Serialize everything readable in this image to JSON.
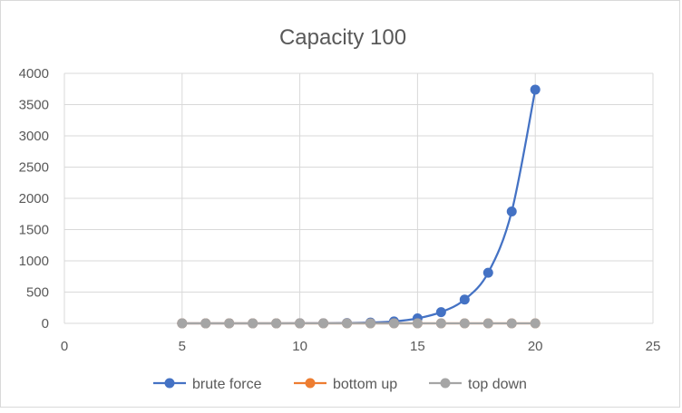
{
  "chart_data": {
    "type": "scatter",
    "title": "Capacity 100",
    "xlabel": "",
    "ylabel": "",
    "xlim": [
      0,
      25
    ],
    "ylim": [
      0,
      4000
    ],
    "xticks": [
      0,
      5,
      10,
      15,
      20,
      25
    ],
    "yticks": [
      0,
      500,
      1000,
      1500,
      2000,
      2500,
      3000,
      3500,
      4000
    ],
    "grid": true,
    "smooth_lines": true,
    "legend_position": "bottom",
    "series": [
      {
        "name": "brute force",
        "color": "#4472c4",
        "x": [
          5,
          6,
          7,
          8,
          9,
          10,
          11,
          12,
          13,
          14,
          15,
          16,
          17,
          18,
          19,
          20
        ],
        "y": [
          0,
          0,
          0,
          0,
          0,
          1,
          2,
          5,
          12,
          30,
          80,
          180,
          380,
          810,
          1790,
          3740
        ]
      },
      {
        "name": "bottom up",
        "color": "#ed7d31",
        "x": [
          5,
          6,
          7,
          8,
          9,
          10,
          11,
          12,
          13,
          14,
          15,
          16,
          17,
          18,
          19,
          20
        ],
        "y": [
          0,
          0,
          0,
          0,
          0,
          0,
          0,
          0,
          0,
          0,
          0,
          0,
          0,
          0,
          0,
          0
        ]
      },
      {
        "name": "top down",
        "color": "#a5a5a5",
        "x": [
          5,
          6,
          7,
          8,
          9,
          10,
          11,
          12,
          13,
          14,
          15,
          16,
          17,
          18,
          19,
          20
        ],
        "y": [
          0,
          0,
          0,
          0,
          0,
          0,
          0,
          0,
          0,
          0,
          0,
          0,
          0,
          0,
          0,
          0
        ]
      }
    ]
  }
}
